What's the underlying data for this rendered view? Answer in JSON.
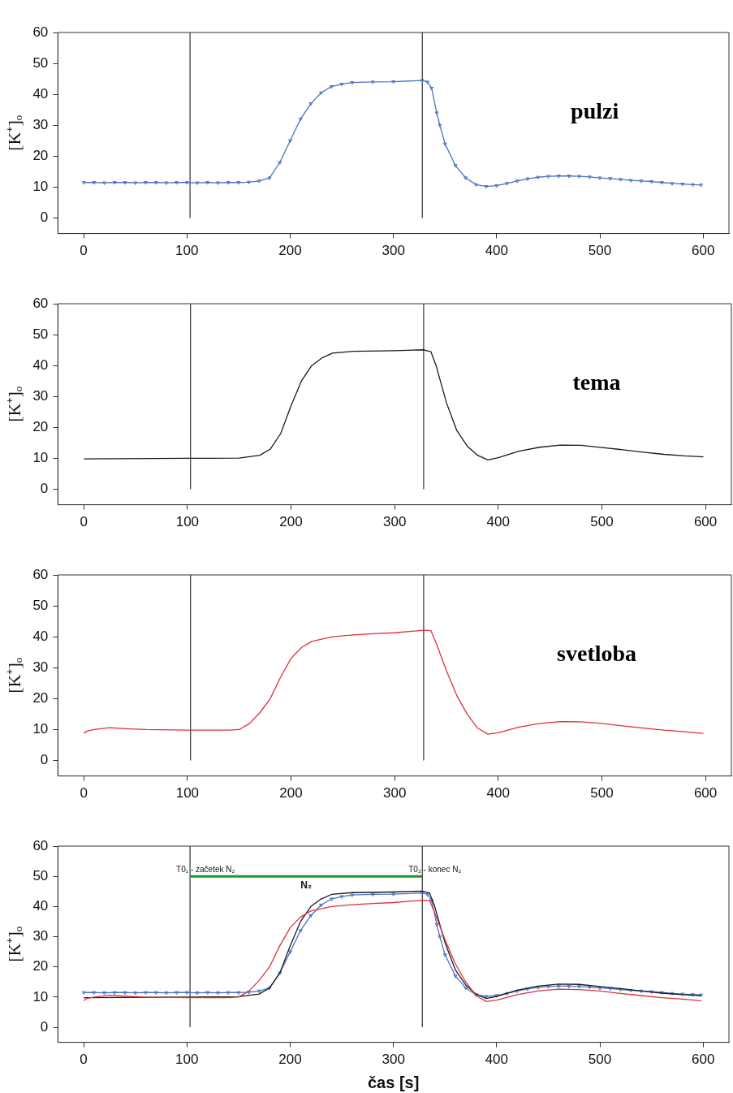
{
  "chart_data": [
    {
      "type": "line",
      "title": "pulzi",
      "ylabel": "[K⁺]ₒ",
      "xlim": [
        -25,
        625
      ],
      "xticks": [
        0,
        100,
        200,
        300,
        400,
        500,
        600
      ],
      "ylim": [
        -5,
        60
      ],
      "yticks": [
        0,
        10,
        20,
        30,
        40,
        50,
        60
      ],
      "grid": false,
      "ref_lines": [
        {
          "axis": "x",
          "value": 103,
          "color": "#333333"
        },
        {
          "axis": "x",
          "value": 328,
          "color": "#333333"
        }
      ],
      "series": [
        {
          "color": "#4a72c4",
          "marker": "triangle",
          "x": [
            0,
            10,
            20,
            30,
            40,
            50,
            60,
            70,
            80,
            90,
            100,
            110,
            120,
            130,
            140,
            150,
            160,
            170,
            180,
            190,
            200,
            210,
            220,
            230,
            240,
            250,
            260,
            280,
            300,
            328,
            333,
            337,
            342,
            345,
            350,
            360,
            370,
            380,
            390,
            400,
            410,
            420,
            430,
            440,
            450,
            460,
            470,
            480,
            490,
            500,
            510,
            520,
            530,
            540,
            550,
            560,
            570,
            580,
            590,
            598
          ],
          "values": [
            11.5,
            11.5,
            11.4,
            11.5,
            11.5,
            11.4,
            11.5,
            11.5,
            11.4,
            11.5,
            11.5,
            11.4,
            11.5,
            11.4,
            11.5,
            11.5,
            11.6,
            12,
            13,
            18,
            25,
            32,
            37,
            40.5,
            42.5,
            43.3,
            43.8,
            44,
            44.1,
            44.5,
            44,
            42,
            34,
            30,
            24,
            17,
            13,
            10.8,
            10.2,
            10.5,
            11.2,
            12,
            12.7,
            13.2,
            13.5,
            13.6,
            13.6,
            13.5,
            13.3,
            13,
            12.8,
            12.5,
            12.2,
            12,
            11.8,
            11.5,
            11.2,
            11,
            10.8,
            10.7
          ]
        }
      ]
    },
    {
      "type": "line",
      "title": "tema",
      "ylabel": "[K⁺]ₒ",
      "xlim": [
        -25,
        625
      ],
      "xticks": [
        0,
        100,
        200,
        300,
        400,
        500,
        600
      ],
      "ylim": [
        -5,
        60
      ],
      "yticks": [
        0,
        10,
        20,
        30,
        40,
        50,
        60
      ],
      "grid": false,
      "ref_lines": [
        {
          "axis": "x",
          "value": 103,
          "color": "#333333"
        },
        {
          "axis": "x",
          "value": 328,
          "color": "#333333"
        }
      ],
      "series": [
        {
          "color": "#1a1a1a",
          "marker": "none",
          "x": [
            0,
            100,
            150,
            170,
            180,
            190,
            200,
            210,
            220,
            230,
            240,
            260,
            300,
            328,
            335,
            340,
            350,
            360,
            370,
            380,
            390,
            400,
            420,
            440,
            460,
            480,
            500,
            520,
            540,
            560,
            580,
            598
          ],
          "values": [
            9.8,
            10,
            10.1,
            11,
            13,
            18,
            27,
            35,
            40,
            42.5,
            44,
            44.6,
            44.8,
            45.1,
            44.5,
            40,
            28,
            19,
            14,
            11,
            9.5,
            10.2,
            12.3,
            13.6,
            14.3,
            14.2,
            13.5,
            12.8,
            12,
            11.3,
            10.8,
            10.5
          ]
        }
      ]
    },
    {
      "type": "line",
      "title": "svetloba",
      "ylabel": "[K⁺]ₒ",
      "xlim": [
        -25,
        625
      ],
      "xticks": [
        0,
        100,
        200,
        300,
        400,
        500,
        600
      ],
      "ylim": [
        -5,
        60
      ],
      "yticks": [
        0,
        10,
        20,
        30,
        40,
        50,
        60
      ],
      "grid": false,
      "ref_lines": [
        {
          "axis": "x",
          "value": 103,
          "color": "#333333"
        },
        {
          "axis": "x",
          "value": 328,
          "color": "#333333"
        }
      ],
      "series": [
        {
          "color": "#e0303a",
          "marker": "none",
          "x": [
            0,
            3,
            10,
            25,
            40,
            60,
            100,
            140,
            150,
            160,
            170,
            180,
            190,
            200,
            210,
            220,
            240,
            260,
            280,
            300,
            328,
            335,
            340,
            350,
            360,
            370,
            380,
            390,
            400,
            420,
            440,
            460,
            480,
            500,
            520,
            540,
            560,
            580,
            598
          ],
          "values": [
            8.8,
            9.5,
            10,
            10.6,
            10.3,
            10,
            9.8,
            9.8,
            10,
            12,
            15.5,
            20,
            27,
            33,
            36.5,
            38.5,
            40,
            40.6,
            41,
            41.3,
            42.1,
            42,
            38,
            29,
            21,
            15,
            10.5,
            8.5,
            9,
            10.8,
            12,
            12.6,
            12.5,
            12,
            11.2,
            10.5,
            9.8,
            9.3,
            8.8
          ]
        }
      ]
    },
    {
      "type": "line",
      "xlabel": "čas [s]",
      "ylabel": "[K⁺]ₒ",
      "xlim": [
        -25,
        625
      ],
      "xticks": [
        0,
        100,
        200,
        300,
        400,
        500,
        600
      ],
      "ylim": [
        -5,
        60
      ],
      "yticks": [
        0,
        10,
        20,
        30,
        40,
        50,
        60
      ],
      "grid": false,
      "ref_lines": [
        {
          "axis": "x",
          "value": 103,
          "color": "#333333"
        },
        {
          "axis": "x",
          "value": 328,
          "color": "#333333"
        }
      ],
      "annotations": [
        {
          "text": "T0₁ - začetek N₂",
          "x": 103,
          "y": 50
        },
        {
          "text": "T0₂ - konec N₂",
          "x": 328,
          "y": 50
        }
      ],
      "series": [
        {
          "color": "#4a72c4",
          "marker": "triangle",
          "x": [
            0,
            10,
            20,
            30,
            40,
            50,
            60,
            70,
            80,
            90,
            100,
            110,
            120,
            130,
            140,
            150,
            160,
            170,
            180,
            190,
            200,
            210,
            220,
            230,
            240,
            250,
            260,
            280,
            300,
            328,
            333,
            337,
            342,
            345,
            350,
            360,
            370,
            380,
            390,
            400,
            410,
            420,
            430,
            440,
            450,
            460,
            470,
            480,
            490,
            500,
            510,
            520,
            530,
            540,
            550,
            560,
            570,
            580,
            590,
            598
          ],
          "values": [
            11.5,
            11.5,
            11.4,
            11.5,
            11.5,
            11.4,
            11.5,
            11.5,
            11.4,
            11.5,
            11.5,
            11.4,
            11.5,
            11.4,
            11.5,
            11.5,
            11.6,
            12,
            13,
            18,
            25,
            32,
            37,
            40.5,
            42.5,
            43.3,
            43.8,
            44,
            44.1,
            44.5,
            44,
            42,
            34,
            30,
            24,
            17,
            13,
            10.8,
            10.2,
            10.5,
            11.2,
            12,
            12.7,
            13.2,
            13.5,
            13.6,
            13.6,
            13.5,
            13.3,
            13,
            12.8,
            12.5,
            12.2,
            12,
            11.8,
            11.5,
            11.2,
            11,
            10.8,
            10.7
          ]
        },
        {
          "color": "#1a1a1a",
          "marker": "none",
          "x": [
            0,
            100,
            150,
            170,
            180,
            190,
            200,
            210,
            220,
            230,
            240,
            260,
            300,
            328,
            335,
            340,
            350,
            360,
            370,
            380,
            390,
            400,
            420,
            440,
            460,
            480,
            500,
            520,
            540,
            560,
            580,
            598
          ],
          "values": [
            9.8,
            10,
            10.1,
            11,
            13,
            18,
            27,
            35,
            40,
            42.5,
            44,
            44.6,
            44.8,
            45.1,
            44.5,
            40,
            28,
            19,
            14,
            11,
            9.5,
            10.2,
            12.3,
            13.6,
            14.3,
            14.2,
            13.5,
            12.8,
            12,
            11.3,
            10.8,
            10.5
          ]
        },
        {
          "color": "#e0303a",
          "marker": "none",
          "x": [
            0,
            3,
            10,
            25,
            40,
            60,
            100,
            140,
            150,
            160,
            170,
            180,
            190,
            200,
            210,
            220,
            240,
            260,
            280,
            300,
            328,
            335,
            340,
            350,
            360,
            370,
            380,
            390,
            400,
            420,
            440,
            460,
            480,
            500,
            520,
            540,
            560,
            580,
            598
          ],
          "values": [
            8.8,
            9.5,
            10,
            10.6,
            10.3,
            10,
            9.8,
            9.8,
            10,
            12,
            15.5,
            20,
            27,
            33,
            36.5,
            38.5,
            40,
            40.6,
            41,
            41.3,
            42.1,
            42,
            38,
            29,
            21,
            15,
            10.5,
            8.5,
            9,
            10.8,
            12,
            12.6,
            12.5,
            12,
            11.2,
            10.5,
            9.8,
            9.3,
            8.8
          ]
        },
        {
          "name": "N₂",
          "color": "#1a9a2a",
          "marker": "none",
          "x": [
            103,
            328
          ],
          "values": [
            50,
            50
          ]
        }
      ]
    }
  ]
}
